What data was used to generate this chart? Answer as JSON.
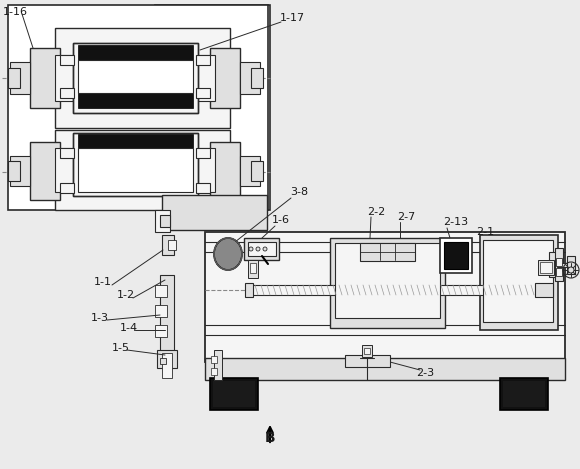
{
  "bg_color": "#ebebeb",
  "line_color": "#2a2a2a",
  "dark_color": "#000000",
  "dashed_color": "#888888",
  "label_color": "#1a1a1a",
  "white_fill": "#ffffff",
  "light_fill": "#f5f5f5",
  "mid_fill": "#e0e0e0",
  "dark_fill": "#111111"
}
